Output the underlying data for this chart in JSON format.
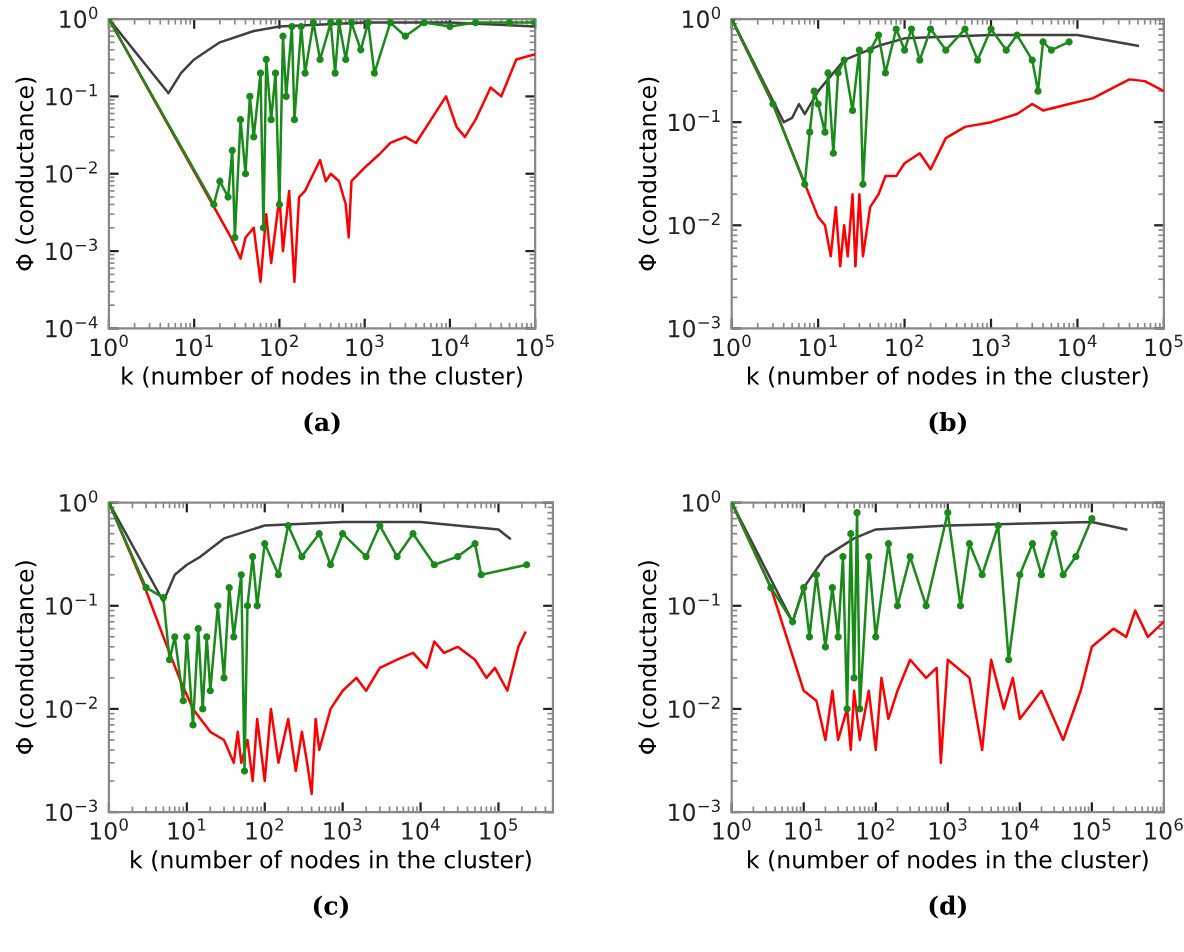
{
  "chart_data": [
    {
      "type": "line",
      "title": "(a)",
      "xlabel": "k (number of nodes in the cluster)",
      "ylabel": "Φ (conductance)",
      "log": "xy",
      "xlim": [
        1,
        100000
      ],
      "ylim": [
        0.0001,
        1
      ],
      "xticks": [
        {
          "value": 1,
          "label": "10$^{0}$"
        },
        {
          "value": 10,
          "label": "10$^{1}$"
        },
        {
          "value": 100,
          "label": "10$^{2}$"
        },
        {
          "value": 1000,
          "label": "10$^{3}$"
        },
        {
          "value": 10000,
          "label": "10$^{4}$"
        },
        {
          "value": 100000,
          "label": "10$^{5}$"
        }
      ],
      "yticks": [
        {
          "value": 0.0001,
          "label": "10$^{−4}$"
        },
        {
          "value": 0.001,
          "label": "10$^{−3}$"
        },
        {
          "value": 0.01,
          "label": "10$^{−2}$"
        },
        {
          "value": 0.1,
          "label": "10$^{−1}$"
        },
        {
          "value": 1,
          "label": "10$^{0}$"
        }
      ],
      "series": [
        {
          "color": "#404040",
          "marker": "none",
          "x": [
            1,
            5,
            7,
            10,
            20,
            50,
            100,
            1000,
            10000,
            100000
          ],
          "values": [
            1,
            0.11,
            0.2,
            0.3,
            0.5,
            0.7,
            0.8,
            0.9,
            0.9,
            0.8
          ]
        },
        {
          "color": "#ff0000",
          "marker": "none",
          "x": [
            1,
            27,
            35,
            40,
            50,
            60,
            70,
            80,
            100,
            110,
            130,
            150,
            170,
            200,
            250,
            300,
            350,
            400,
            500,
            600,
            650,
            700,
            1000,
            1500,
            2000,
            3000,
            4000,
            6000,
            9000,
            12000,
            15000,
            20000,
            30000,
            40000,
            60000,
            100000
          ],
          "values": [
            1,
            0.0015,
            0.0008,
            0.0015,
            0.002,
            0.0004,
            0.003,
            0.0007,
            0.005,
            0.001,
            0.006,
            0.0004,
            0.005,
            0.006,
            0.01,
            0.015,
            0.008,
            0.01,
            0.008,
            0.004,
            0.0015,
            0.008,
            0.012,
            0.018,
            0.025,
            0.03,
            0.025,
            0.05,
            0.1,
            0.04,
            0.03,
            0.05,
            0.13,
            0.1,
            0.3,
            0.35
          ]
        },
        {
          "color": "#1a8a1a",
          "marker": "circle",
          "x": [
            1,
            17,
            20,
            25,
            28,
            30,
            35,
            40,
            45,
            50,
            60,
            65,
            70,
            80,
            90,
            100,
            110,
            120,
            140,
            150,
            180,
            200,
            250,
            300,
            400,
            450,
            500,
            600,
            700,
            900,
            1100,
            1300,
            2000,
            3000,
            5000,
            10000,
            20000,
            50000,
            100000
          ],
          "values": [
            1,
            0.004,
            0.008,
            0.005,
            0.02,
            0.0015,
            0.05,
            0.01,
            0.1,
            0.03,
            0.2,
            0.002,
            0.3,
            0.05,
            0.2,
            0.004,
            0.6,
            0.1,
            0.8,
            0.05,
            0.8,
            0.2,
            0.9,
            0.3,
            0.9,
            0.2,
            0.9,
            0.3,
            0.9,
            0.4,
            0.9,
            0.2,
            0.9,
            0.6,
            0.9,
            0.8,
            0.9,
            0.9,
            0.9
          ]
        }
      ]
    },
    {
      "type": "line",
      "title": "(b)",
      "xlabel": "k (number of nodes in the cluster)",
      "ylabel": "Φ (conductance)",
      "log": "xy",
      "xlim": [
        1,
        100000
      ],
      "ylim": [
        0.001,
        1
      ],
      "xticks": [
        {
          "value": 1,
          "label": "10$^{0}$"
        },
        {
          "value": 10,
          "label": "10$^{1}$"
        },
        {
          "value": 100,
          "label": "10$^{2}$"
        },
        {
          "value": 1000,
          "label": "10$^{3}$"
        },
        {
          "value": 10000,
          "label": "10$^{4}$"
        },
        {
          "value": 100000,
          "label": "10$^{5}$"
        }
      ],
      "yticks": [
        {
          "value": 0.001,
          "label": "10$^{−3}$"
        },
        {
          "value": 0.01,
          "label": "10$^{−2}$"
        },
        {
          "value": 0.1,
          "label": "10$^{−1}$"
        },
        {
          "value": 1,
          "label": "10$^{0}$"
        }
      ],
      "series": [
        {
          "color": "#404040",
          "marker": "none",
          "x": [
            1,
            4,
            5,
            6,
            7,
            10,
            20,
            50,
            100,
            1000,
            10000,
            50000
          ],
          "values": [
            1,
            0.1,
            0.11,
            0.15,
            0.12,
            0.2,
            0.4,
            0.55,
            0.65,
            0.7,
            0.7,
            0.55
          ]
        },
        {
          "color": "#ff0000",
          "marker": "none",
          "x": [
            1,
            3,
            10,
            12,
            14,
            16,
            18,
            20,
            22,
            25,
            27,
            30,
            33,
            40,
            50,
            60,
            80,
            100,
            150,
            200,
            300,
            500,
            1000,
            2000,
            3000,
            4000,
            8000,
            15000,
            30000,
            40000,
            60000,
            100000
          ],
          "values": [
            1,
            0.15,
            0.012,
            0.01,
            0.005,
            0.015,
            0.004,
            0.01,
            0.005,
            0.02,
            0.004,
            0.02,
            0.005,
            0.015,
            0.02,
            0.03,
            0.03,
            0.04,
            0.05,
            0.035,
            0.07,
            0.09,
            0.1,
            0.12,
            0.15,
            0.13,
            0.15,
            0.17,
            0.23,
            0.26,
            0.25,
            0.2
          ]
        },
        {
          "color": "#1a8a1a",
          "marker": "circle",
          "x": [
            1,
            3,
            7,
            8,
            9,
            10,
            12,
            13,
            15,
            17,
            20,
            25,
            30,
            33,
            40,
            50,
            60,
            80,
            100,
            120,
            150,
            200,
            300,
            500,
            700,
            1000,
            1500,
            2000,
            3000,
            3500,
            4000,
            5000,
            8000
          ],
          "values": [
            1,
            0.15,
            0.025,
            0.08,
            0.2,
            0.15,
            0.08,
            0.3,
            0.05,
            0.3,
            0.4,
            0.13,
            0.5,
            0.025,
            0.5,
            0.7,
            0.3,
            0.8,
            0.5,
            0.8,
            0.4,
            0.8,
            0.5,
            0.8,
            0.4,
            0.8,
            0.5,
            0.7,
            0.4,
            0.2,
            0.6,
            0.5,
            0.6
          ]
        }
      ]
    },
    {
      "type": "line",
      "title": "(c)",
      "xlabel": "k (number of nodes in the cluster)",
      "ylabel": "Φ (conductance)",
      "log": "xy",
      "xlim": [
        1,
        500000
      ],
      "ylim": [
        0.001,
        1
      ],
      "xticks": [
        {
          "value": 1,
          "label": "10$^{0}$"
        },
        {
          "value": 10,
          "label": "10$^{1}$"
        },
        {
          "value": 100,
          "label": "10$^{2}$"
        },
        {
          "value": 1000,
          "label": "10$^{3}$"
        },
        {
          "value": 10000,
          "label": "10$^{4}$"
        },
        {
          "value": 100000,
          "label": "10$^{5}$"
        }
      ],
      "yticks": [
        {
          "value": 0.001,
          "label": "10$^{−3}$"
        },
        {
          "value": 0.01,
          "label": "10$^{−2}$"
        },
        {
          "value": 0.1,
          "label": "10$^{−1}$"
        },
        {
          "value": 1,
          "label": "10$^{0}$"
        }
      ],
      "series": [
        {
          "color": "#404040",
          "marker": "none",
          "x": [
            1,
            5,
            7,
            10,
            15,
            30,
            100,
            1000,
            10000,
            100000,
            140000
          ],
          "values": [
            1,
            0.11,
            0.2,
            0.25,
            0.3,
            0.45,
            0.6,
            0.65,
            0.65,
            0.55,
            0.45
          ]
        },
        {
          "color": "#ff0000",
          "marker": "none",
          "x": [
            1,
            3,
            5,
            8,
            12,
            20,
            30,
            40,
            45,
            50,
            60,
            70,
            80,
            100,
            120,
            150,
            200,
            250,
            300,
            350,
            400,
            450,
            500,
            700,
            1000,
            1500,
            2000,
            3000,
            5000,
            8000,
            12000,
            15000,
            20000,
            30000,
            50000,
            70000,
            90000,
            130000,
            180000,
            220000
          ],
          "values": [
            1,
            0.14,
            0.05,
            0.02,
            0.01,
            0.006,
            0.005,
            0.003,
            0.006,
            0.003,
            0.005,
            0.002,
            0.008,
            0.002,
            0.01,
            0.003,
            0.008,
            0.0025,
            0.006,
            0.003,
            0.0015,
            0.008,
            0.004,
            0.01,
            0.015,
            0.02,
            0.015,
            0.025,
            0.03,
            0.035,
            0.025,
            0.045,
            0.035,
            0.04,
            0.03,
            0.02,
            0.025,
            0.015,
            0.04,
            0.055
          ]
        },
        {
          "color": "#1a8a1a",
          "marker": "circle",
          "x": [
            1,
            3,
            5,
            6,
            7,
            9,
            10,
            12,
            14,
            16,
            18,
            20,
            25,
            30,
            35,
            40,
            50,
            55,
            60,
            70,
            80,
            100,
            150,
            200,
            300,
            500,
            700,
            1000,
            2000,
            3000,
            5000,
            8000,
            15000,
            30000,
            50000,
            60000,
            230000
          ],
          "values": [
            1,
            0.15,
            0.12,
            0.03,
            0.05,
            0.012,
            0.05,
            0.007,
            0.06,
            0.01,
            0.05,
            0.015,
            0.1,
            0.02,
            0.15,
            0.05,
            0.2,
            0.0025,
            0.1,
            0.3,
            0.1,
            0.4,
            0.2,
            0.6,
            0.3,
            0.5,
            0.25,
            0.5,
            0.3,
            0.6,
            0.3,
            0.5,
            0.25,
            0.3,
            0.4,
            0.2,
            0.25
          ]
        }
      ]
    },
    {
      "type": "line",
      "title": "(d)",
      "xlabel": "k (number of nodes in the cluster)",
      "ylabel": "Φ (conductance)",
      "log": "xy",
      "xlim": [
        1,
        1000000
      ],
      "ylim": [
        0.001,
        1
      ],
      "xticks": [
        {
          "value": 1,
          "label": "10$^{0}$"
        },
        {
          "value": 10,
          "label": "10$^{1}$"
        },
        {
          "value": 100,
          "label": "10$^{2}$"
        },
        {
          "value": 1000,
          "label": "10$^{3}$"
        },
        {
          "value": 10000,
          "label": "10$^{4}$"
        },
        {
          "value": 100000,
          "label": "10$^{5}$"
        },
        {
          "value": 1000000,
          "label": "10$^{6}$"
        }
      ],
      "yticks": [
        {
          "value": 0.001,
          "label": "10$^{−3}$"
        },
        {
          "value": 0.01,
          "label": "10$^{−2}$"
        },
        {
          "value": 0.1,
          "label": "10$^{−1}$"
        },
        {
          "value": 1,
          "label": "10$^{0}$"
        }
      ],
      "series": [
        {
          "color": "#404040",
          "marker": "none",
          "x": [
            1,
            7,
            10,
            20,
            50,
            100,
            1000,
            100000,
            300000
          ],
          "values": [
            1,
            0.07,
            0.15,
            0.3,
            0.45,
            0.55,
            0.6,
            0.65,
            0.55
          ]
        },
        {
          "color": "#ff0000",
          "marker": "none",
          "x": [
            1,
            3.5,
            10,
            15,
            20,
            25,
            30,
            40,
            45,
            50,
            60,
            80,
            100,
            120,
            150,
            200,
            300,
            500,
            700,
            800,
            1000,
            2000,
            3000,
            4000,
            6000,
            8000,
            10000,
            20000,
            40000,
            70000,
            100000,
            200000,
            300000,
            400000,
            600000,
            1000000
          ],
          "values": [
            1,
            0.15,
            0.015,
            0.012,
            0.005,
            0.015,
            0.005,
            0.01,
            0.004,
            0.015,
            0.005,
            0.015,
            0.004,
            0.02,
            0.008,
            0.015,
            0.03,
            0.02,
            0.025,
            0.003,
            0.03,
            0.02,
            0.004,
            0.03,
            0.01,
            0.02,
            0.008,
            0.015,
            0.005,
            0.015,
            0.04,
            0.06,
            0.05,
            0.09,
            0.05,
            0.07
          ]
        },
        {
          "color": "#1a8a1a",
          "marker": "circle",
          "x": [
            1,
            3.5,
            7,
            10,
            12,
            15,
            20,
            25,
            30,
            35,
            40,
            45,
            50,
            55,
            60,
            80,
            100,
            150,
            200,
            300,
            500,
            1000,
            1500,
            2000,
            3000,
            5000,
            7000,
            10000,
            15000,
            20000,
            30000,
            40000,
            60000,
            100000
          ],
          "values": [
            1,
            0.15,
            0.07,
            0.15,
            0.05,
            0.2,
            0.04,
            0.15,
            0.05,
            0.3,
            0.01,
            0.5,
            0.02,
            0.8,
            0.01,
            0.3,
            0.05,
            0.4,
            0.1,
            0.3,
            0.1,
            0.8,
            0.1,
            0.4,
            0.2,
            0.6,
            0.03,
            0.2,
            0.4,
            0.2,
            0.5,
            0.2,
            0.3,
            0.7
          ]
        }
      ]
    }
  ]
}
